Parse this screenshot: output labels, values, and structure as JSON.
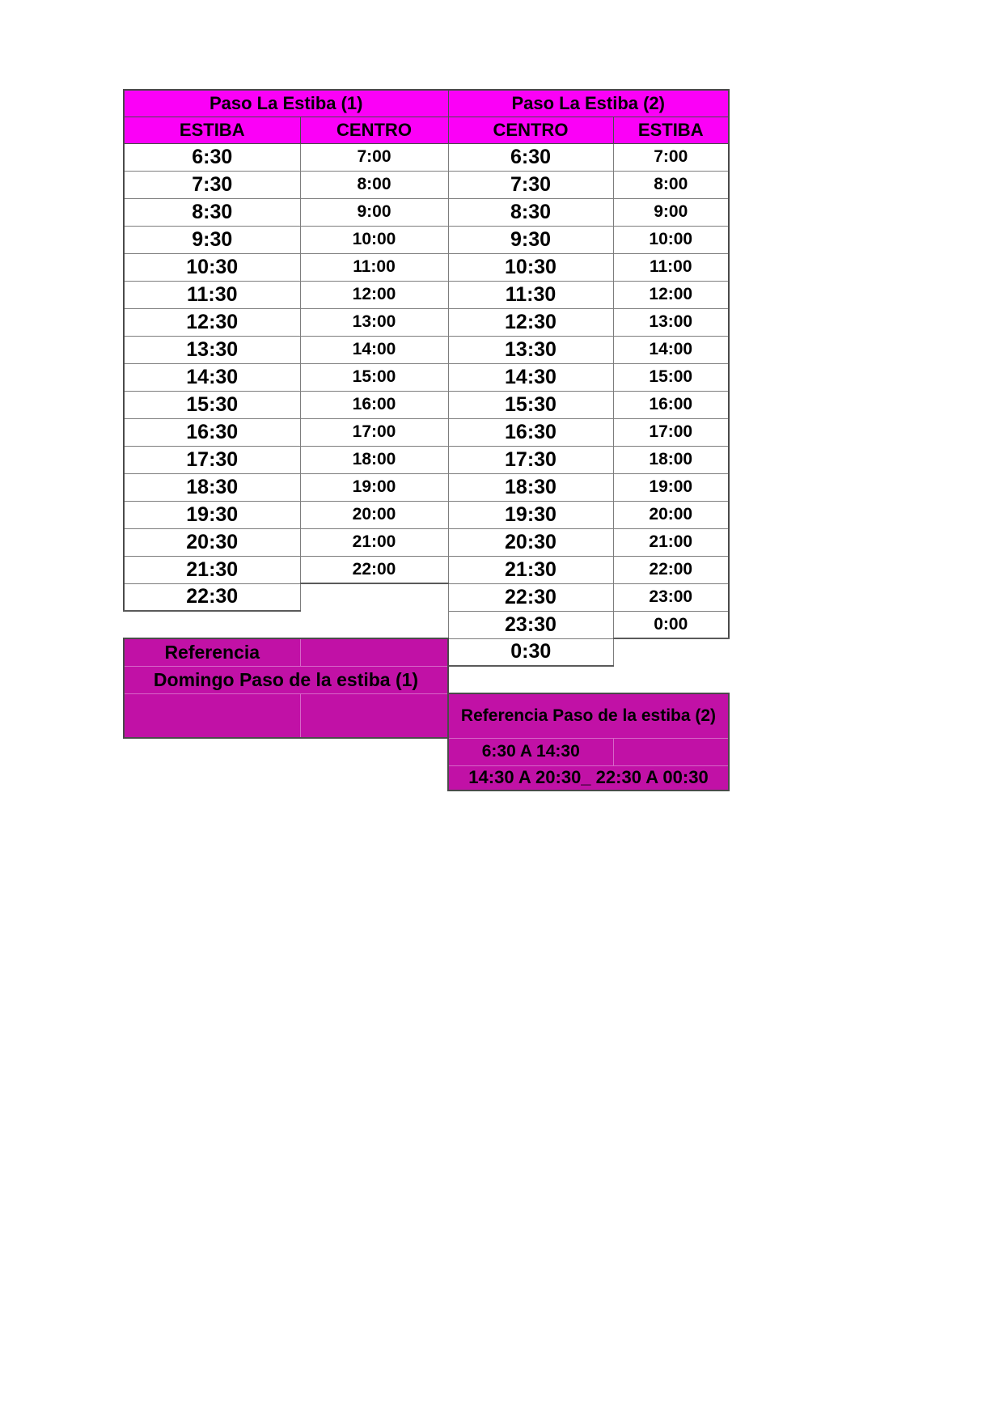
{
  "colors": {
    "header_magenta": "#fb00f7",
    "reference_purple": "#c111a6",
    "grid_line": "#7d7d7d",
    "frame_line": "#4a4a4a"
  },
  "schedule": {
    "group_headers": [
      "Paso La Estiba (1)",
      "Paso La Estiba (2)"
    ],
    "column_headers": [
      "ESTIBA",
      "CENTRO",
      "CENTRO",
      "ESTIBA"
    ],
    "rows": [
      [
        "6:30",
        "7:00",
        "6:30",
        "7:00"
      ],
      [
        "7:30",
        "8:00",
        "7:30",
        "8:00"
      ],
      [
        "8:30",
        "9:00",
        "8:30",
        "9:00"
      ],
      [
        "9:30",
        "10:00",
        "9:30",
        "10:00"
      ],
      [
        "10:30",
        "11:00",
        "10:30",
        "11:00"
      ],
      [
        "11:30",
        "12:00",
        "11:30",
        "12:00"
      ],
      [
        "12:30",
        "13:00",
        "12:30",
        "13:00"
      ],
      [
        "13:30",
        "14:00",
        "13:30",
        "14:00"
      ],
      [
        "14:30",
        "15:00",
        "14:30",
        "15:00"
      ],
      [
        "15:30",
        "16:00",
        "15:30",
        "16:00"
      ],
      [
        "16:30",
        "17:00",
        "16:30",
        "17:00"
      ],
      [
        "17:30",
        "18:00",
        "17:30",
        "18:00"
      ],
      [
        "18:30",
        "19:00",
        "18:30",
        "19:00"
      ],
      [
        "19:30",
        "20:00",
        "19:30",
        "20:00"
      ],
      [
        "20:30",
        "21:00",
        "20:30",
        "21:00"
      ],
      [
        "21:30",
        "22:00",
        "21:30",
        "22:00"
      ],
      [
        "22:30",
        null,
        "22:30",
        "23:00"
      ],
      [
        null,
        null,
        "23:30",
        "0:00"
      ]
    ],
    "last_row_time": "0:30"
  },
  "referencia_1": {
    "title": "Referencia",
    "subtitle": "Domingo Paso de la estiba (1)"
  },
  "referencia_2": {
    "title": "Referencia Paso de la estiba (2)",
    "row1": "6:30 A 14:30",
    "row2": "14:30 A 20:30_ 22:30 A 00:30"
  }
}
